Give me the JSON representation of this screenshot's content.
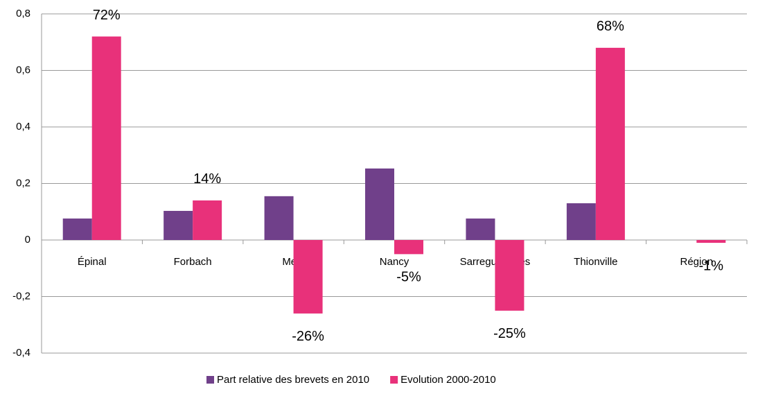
{
  "chart_data": {
    "type": "bar",
    "categories": [
      "Épinal",
      "Forbach",
      "Metz",
      "Nancy",
      "Sarreguemines",
      "Thionville",
      "Région"
    ],
    "series": [
      {
        "name": "Part relative des brevets en 2010",
        "color": "#70408a",
        "values": [
          0.076,
          0.103,
          0.155,
          0.253,
          0.076,
          0.13,
          0
        ]
      },
      {
        "name": "Evolution 2000-2010",
        "color": "#e8317a",
        "values": [
          0.72,
          0.14,
          -0.26,
          -0.05,
          -0.25,
          0.68,
          -0.01
        ],
        "value_labels": [
          "72%",
          "14%",
          "-26%",
          "-5%",
          "-25%",
          "68%",
          "-1%"
        ]
      }
    ],
    "ylim": [
      -0.4,
      0.8
    ],
    "yticks": [
      {
        "value": -0.4,
        "label": "-0,4"
      },
      {
        "value": -0.2,
        "label": "-0,2"
      },
      0,
      {
        "value": 0.2,
        "label": "0,2"
      },
      {
        "value": 0.4,
        "label": "0,4"
      },
      {
        "value": 0.6,
        "label": "0,6"
      },
      {
        "value": 0.8,
        "label": "0,8"
      }
    ],
    "grid": true,
    "legend": "bottom"
  }
}
